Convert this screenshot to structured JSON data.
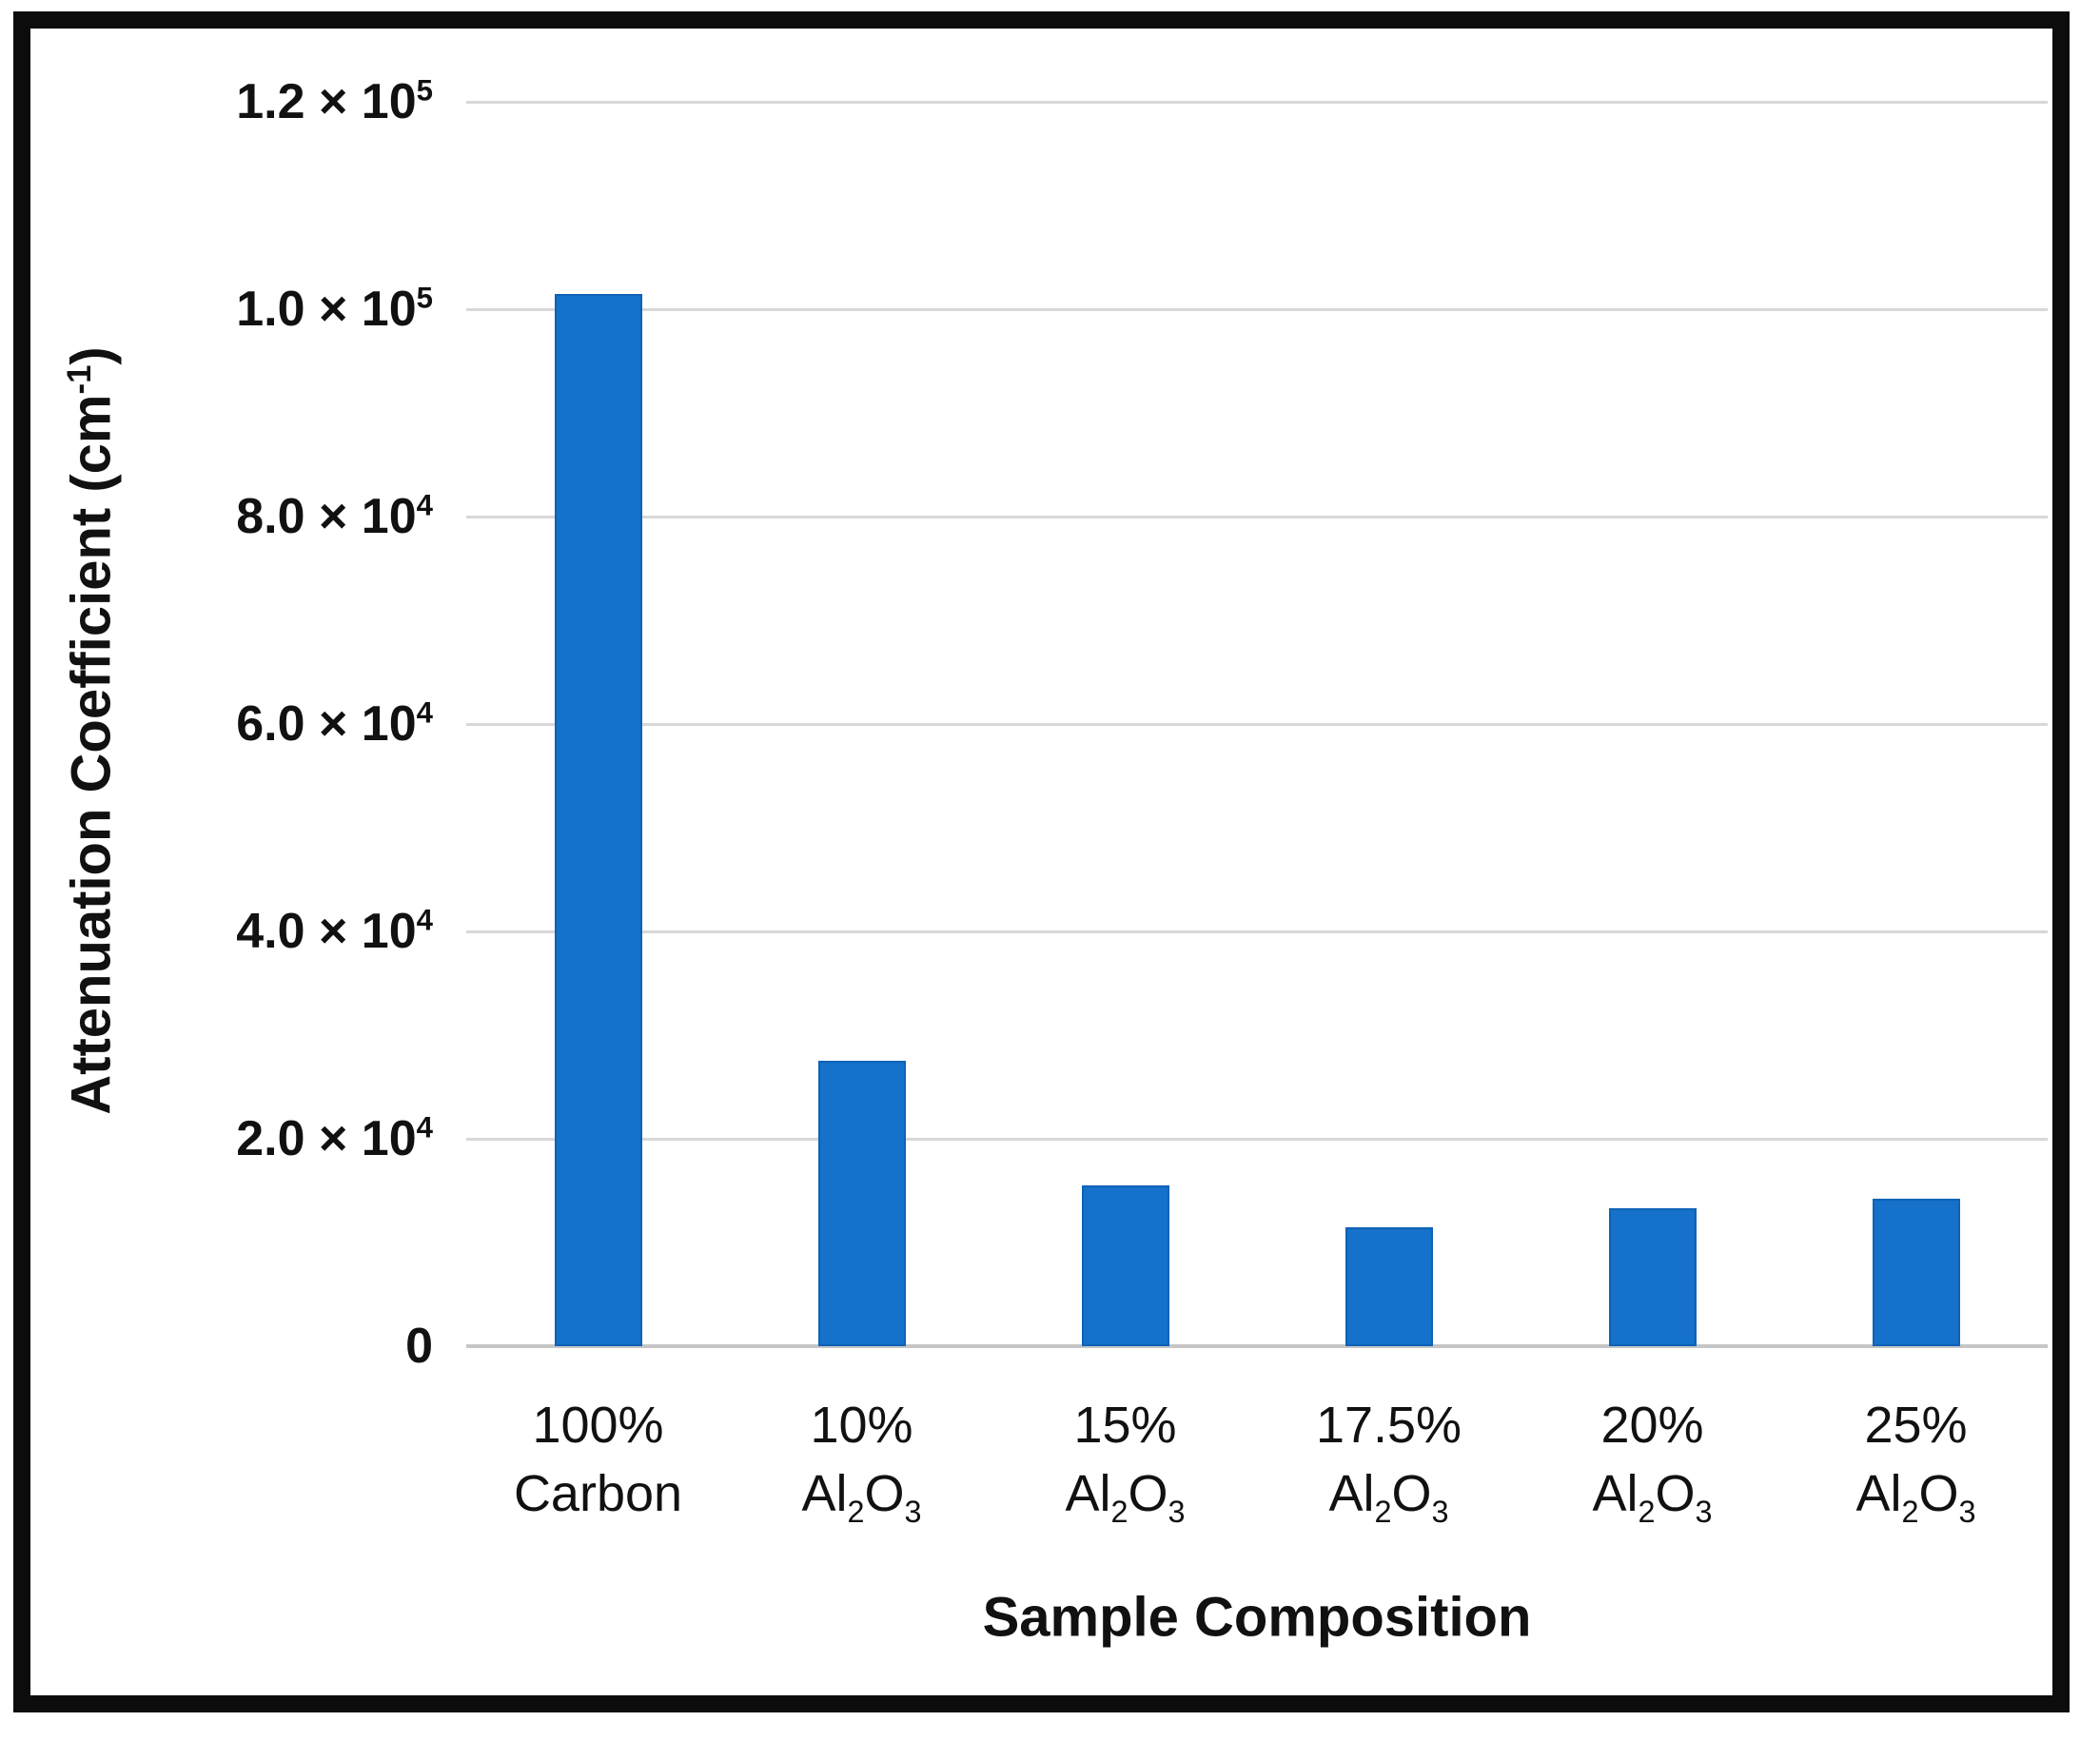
{
  "figure": {
    "background": "#ffffff",
    "frame_border_color": "#0c0c0c"
  },
  "chart_data": {
    "type": "bar",
    "title": "",
    "xlabel": "Sample Composition",
    "ylabel": "Attenuation Coefficient (cm^{-1})",
    "categories": [
      [
        "100%",
        "Carbon"
      ],
      [
        "10%",
        "Al_{2}O_{3}"
      ],
      [
        "15%",
        "Al_{2}O_{3}"
      ],
      [
        "17.5%",
        "Al_{2}O_{3}"
      ],
      [
        "20%",
        "Al_{2}O_{3}"
      ],
      [
        "25%",
        "Al_{2}O_{3}"
      ]
    ],
    "values": [
      101500,
      27500,
      15500,
      11500,
      13300,
      14200
    ],
    "ylim": [
      0,
      120000
    ],
    "yticks": [
      {
        "label": "1.2 × 10^{5}",
        "value": 120000
      },
      {
        "label": "1.0 × 10^{5}",
        "value": 100000
      },
      {
        "label": "8.0 × 10^{4}",
        "value": 80000
      },
      {
        "label": "6.0 × 10^{4}",
        "value": 60000
      },
      {
        "label": "4.0 × 10^{4}",
        "value": 40000
      },
      {
        "label": "2.0 × 10^{4}",
        "value": 20000
      },
      {
        "label": "0",
        "value": 0
      }
    ],
    "grid": "horizontal",
    "legend": "none",
    "bar_color": "#1571c9",
    "grid_color": "#d8d8d8",
    "axis_line_color": "#c6c6c6",
    "text_color": "#111111"
  }
}
